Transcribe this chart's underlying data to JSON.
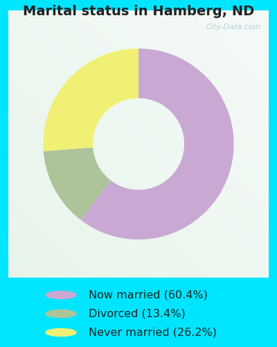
{
  "title": "Marital status in Hamberg, ND",
  "slices": [
    60.4,
    13.4,
    26.2
  ],
  "labels": [
    "Now married (60.4%)",
    "Divorced (13.4%)",
    "Never married (26.2%)"
  ],
  "colors": [
    "#c9a8d4",
    "#adc49a",
    "#f0f075"
  ],
  "bg_outer": "#00e5ff",
  "bg_chart_top": "#ddf0e8",
  "bg_chart_mid": "#e8f5ec",
  "title_color": "#222222",
  "legend_text_color": "#222222",
  "donut_width": 0.52,
  "start_angle": 90,
  "watermark": "City-Data.com",
  "watermark_color": "#aaccd8",
  "legend_fontsize": 11.5,
  "title_fontsize": 14
}
